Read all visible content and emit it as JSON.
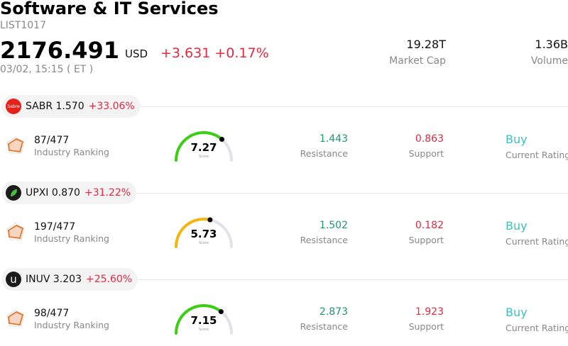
{
  "header": {
    "title": "Software & IT Services",
    "code": "LIST1017",
    "price": "2176.491",
    "currency": "USD",
    "change": "+3.631 +0.17%",
    "time": "03/02, 15:15  ( ET )",
    "market_cap_value": "19.28T",
    "market_cap_label": "Market Cap",
    "volume_value": "1.36B",
    "volume_label": "Volume"
  },
  "stocks": [
    {
      "ticker": "SABR",
      "price": "1.570",
      "change": "+33.06%",
      "logo_text": "Sabre",
      "logo_color": "#e8201a",
      "ranking": "87/477",
      "ranking_label": "Industry Ranking",
      "score": "7.27",
      "score_value": 7.27,
      "score_color": "#3ccf11",
      "score_label": "Score",
      "resistance": "1.443",
      "resistance_label": "Resistance",
      "support": "0.863",
      "support_label": "Support",
      "rating": "Buy",
      "rating_label": "Current Rating"
    },
    {
      "ticker": "UPXI",
      "price": "0.870",
      "change": "+31.22%",
      "logo_text": "",
      "logo_color": "#1b1b1b",
      "ranking": "197/477",
      "ranking_label": "Industry Ranking",
      "score": "5.73",
      "score_value": 5.73,
      "score_color": "#f5b50e",
      "score_label": "Score",
      "resistance": "1.502",
      "resistance_label": "Resistance",
      "support": "0.182",
      "support_label": "Support",
      "rating": "Buy",
      "rating_label": "Current Rating"
    },
    {
      "ticker": "INUV",
      "price": "3.203",
      "change": "+25.60%",
      "logo_text": "u",
      "logo_color": "#1b1b1b",
      "ranking": "98/477",
      "ranking_label": "Industry Ranking",
      "score": "7.15",
      "score_value": 7.15,
      "score_color": "#3ccf11",
      "score_label": "Score",
      "resistance": "2.873",
      "resistance_label": "Resistance",
      "support": "1.923",
      "support_label": "Support",
      "rating": "Buy",
      "rating_label": "Current Rating"
    }
  ]
}
